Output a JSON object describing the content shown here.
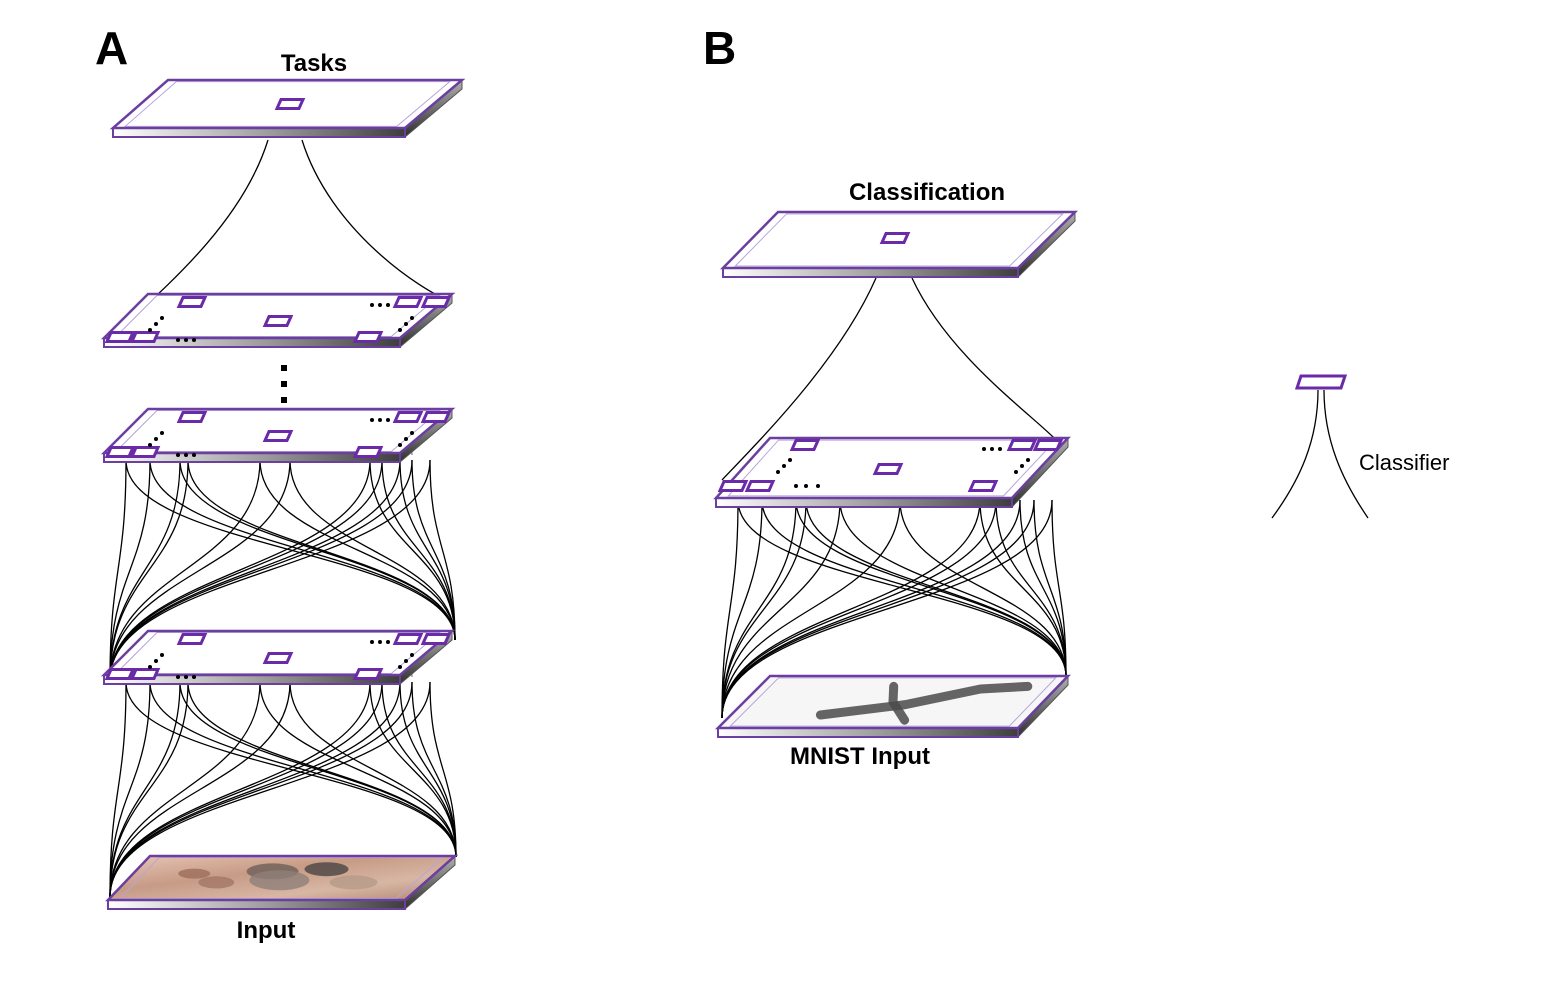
{
  "panels": [
    {
      "letter": "A",
      "top_label": "Tasks",
      "bottom_label": "Input"
    },
    {
      "letter": "B",
      "top_label": "Classification",
      "bottom_label": "MNIST Input"
    }
  ],
  "legend": {
    "label": "Classifier",
    "icon": "classifier-unit-icon"
  },
  "colors": {
    "unit_stroke": "#6b2aa8",
    "layer_edge": "#6b3fa0",
    "connection": "#000000"
  }
}
